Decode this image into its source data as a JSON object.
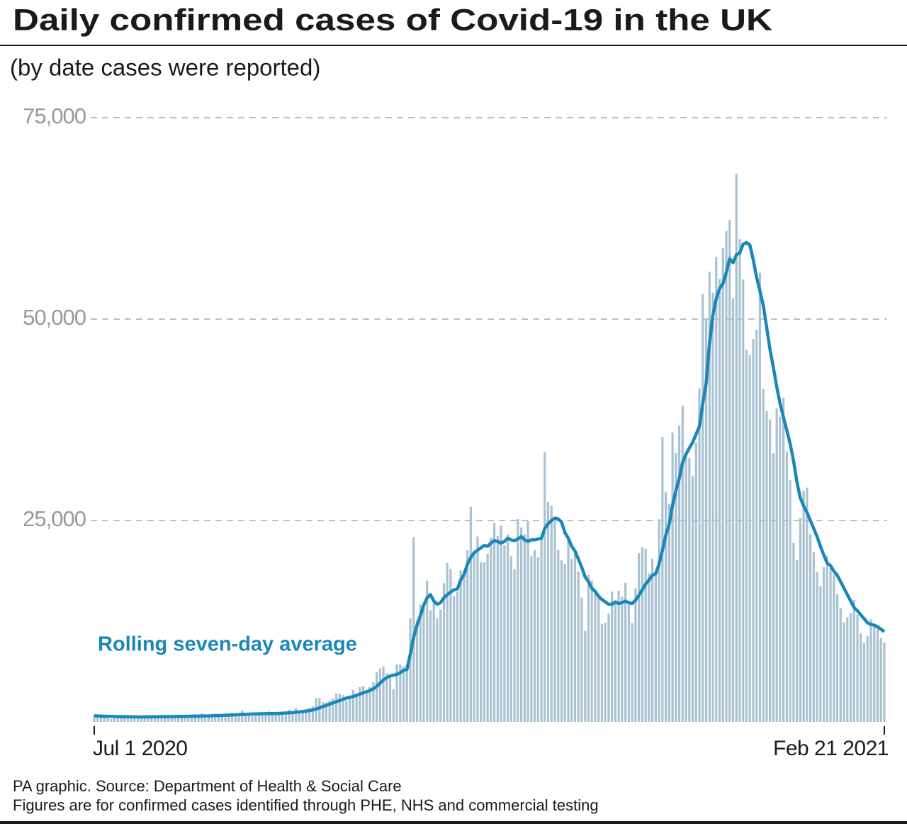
{
  "chart_data": {
    "type": "bar",
    "title": "Daily confirmed cases of Covid-19 in the UK",
    "subtitle": "(by date cases were reported)",
    "notes": [
      "PA graphic. Source: Department of Health & Social Care",
      "Figures are for confirmed cases identified through PHE, NHS and commercial testing"
    ],
    "categories": [
      "Jul 1 2020",
      null,
      null,
      null,
      null,
      null,
      null,
      null,
      null,
      null,
      null,
      null,
      null,
      null,
      null,
      null,
      null,
      null,
      null,
      null,
      null,
      null,
      null,
      null,
      null,
      null,
      null,
      null,
      null,
      null,
      null,
      null,
      null,
      null,
      null,
      null,
      null,
      null,
      null,
      null,
      null,
      null,
      null,
      null,
      null,
      null,
      null,
      null,
      null,
      null,
      null,
      null,
      null,
      null,
      null,
      null,
      null,
      null,
      null,
      null,
      null,
      null,
      null,
      null,
      null,
      null,
      null,
      null,
      null,
      null,
      null,
      null,
      null,
      null,
      null,
      null,
      null,
      null,
      null,
      null,
      null,
      null,
      null,
      null,
      null,
      null,
      null,
      null,
      null,
      null,
      null,
      null,
      null,
      null,
      null,
      null,
      null,
      null,
      null,
      null,
      null,
      null,
      null,
      null,
      null,
      null,
      null,
      null,
      null,
      null,
      null,
      null,
      null,
      null,
      null,
      null,
      null,
      null,
      null,
      null,
      null,
      null,
      null,
      null,
      null,
      null,
      null,
      null,
      null,
      null,
      null,
      null,
      null,
      null,
      null,
      null,
      null,
      null,
      null,
      null,
      null,
      null,
      null,
      null,
      null,
      null,
      null,
      null,
      null,
      null,
      null,
      null,
      null,
      null,
      null,
      null,
      null,
      null,
      null,
      null,
      null,
      null,
      null,
      null,
      null,
      null,
      null,
      null,
      null,
      null,
      null,
      null,
      null,
      null,
      null,
      null,
      null,
      null,
      null,
      null,
      null,
      null,
      null,
      null,
      null,
      null,
      null,
      null,
      null,
      null,
      null,
      null,
      null,
      null,
      null,
      null,
      null,
      null,
      null,
      null,
      null,
      null,
      null,
      null,
      null,
      null,
      null,
      null,
      null,
      null,
      null,
      null,
      null,
      null,
      null,
      null,
      null,
      null,
      null,
      null,
      null,
      null,
      null,
      null,
      null,
      null,
      null,
      null,
      null,
      null,
      null,
      null,
      null,
      null,
      null,
      "Feb 21 2021"
    ],
    "series": [
      {
        "type": "bar",
        "color": "#a9c2d2",
        "values": [
          814,
          576,
          624,
          516,
          624,
          352,
          581,
          630,
          512,
          642,
          820,
          650,
          530,
          581,
          538,
          463,
          687,
          827,
          726,
          560,
          445,
          768,
          769,
          560,
          767,
          685,
          580,
          763,
          581,
          846,
          880,
          743,
          1062,
          938,
          670,
          892,
          950,
          871,
          758,
          1062,
          1005,
          1148,
          1009,
          950,
          1441,
          1012,
          1040,
          713,
          1089,
          812,
          1182,
          1033,
          1288,
          1041,
          853,
          1041,
          1184,
          1276,
          1522,
          1108,
          1715,
          1406,
          1295,
          1508,
          1735,
          1940,
          2988,
          2948,
          2460,
          2420,
          2659,
          2919,
          3539,
          3497,
          3330,
          2621,
          3105,
          3991,
          3395,
          4322,
          4422,
          3899,
          4368,
          4926,
          6178,
          6634,
          6874,
          6042,
          5693,
          4044,
          7143,
          7108,
          6914,
          7108,
          12872,
          22961,
          12594,
          14542,
          14162,
          17540,
          13864,
          15166,
          12872,
          13972,
          17234,
          19724,
          18980,
          15650,
          16171,
          18804,
          18804,
          21331,
          26688,
          21242,
          23012,
          19790,
          19790,
          20890,
          22885,
          24701,
          23065,
          24405,
          21915,
          23254,
          20572,
          18950,
          25177,
          24141,
          23287,
          24957,
          20572,
          21350,
          20412,
          22950,
          33470,
          27301,
          26860,
          24962,
          21363,
          20051,
          19609,
          22915,
          20252,
          21363,
          18662,
          15450,
          11299,
          18213,
          17555,
          16022,
          15871,
          12155,
          12330,
          13430,
          16170,
          14879,
          16298,
          15539,
          17272,
          14718,
          12282,
          16578,
          20964,
          21672,
          21502,
          18447,
          20263,
          18450,
          25161,
          35383,
          28507,
          27052,
          35928,
          33364,
          36804,
          39237,
          32725,
          32725,
          30501,
          34693,
          41385,
          53135,
          50023,
          55892,
          53285,
          57725,
          54990,
          58784,
          60916,
          62322,
          52618,
          68053,
          59937,
          54940,
          46169,
          45533,
          47525,
          48682,
          55761,
          41346,
          38598,
          37535,
          33355,
          38905,
          37892,
          40261,
          33552,
          30004,
          22195,
          20089,
          25308,
          28680,
          29079,
          23275,
          21088,
          18607,
          16840,
          19202,
          20634,
          19114,
          18262,
          15845,
          14104,
          12364,
          13013,
          13494,
          15144,
          13308,
          10972,
          9765,
          10625,
          12718,
          12057,
          12027,
          10406,
          9834
        ]
      },
      {
        "type": "line",
        "name": "Rolling seven-day average",
        "color": "#1a87b9",
        "values": [
          760,
          740,
          720,
          700,
          690,
          680,
          670,
          660,
          650,
          640,
          640,
          630,
          630,
          620,
          620,
          620,
          630,
          630,
          640,
          640,
          650,
          650,
          660,
          660,
          670,
          670,
          680,
          680,
          690,
          700,
          710,
          720,
          730,
          740,
          750,
          760,
          780,
          790,
          800,
          820,
          840,
          860,
          880,
          900,
          920,
          940,
          960,
          980,
          990,
          1000,
          1010,
          1020,
          1030,
          1040,
          1050,
          1060,
          1080,
          1100,
          1130,
          1160,
          1200,
          1240,
          1290,
          1340,
          1400,
          1480,
          1600,
          1750,
          1900,
          2050,
          2200,
          2350,
          2500,
          2650,
          2800,
          2950,
          3050,
          3150,
          3300,
          3450,
          3600,
          3750,
          3900,
          4100,
          4400,
          4800,
          5200,
          5500,
          5700,
          5800,
          5900,
          6100,
          6400,
          6500,
          8400,
          10500,
          12000,
          13200,
          14500,
          15400,
          15800,
          15000,
          14600,
          14800,
          15400,
          15800,
          16100,
          16400,
          16500,
          17600,
          18300,
          19600,
          20400,
          21000,
          21300,
          21600,
          21900,
          21800,
          22200,
          22500,
          22400,
          22200,
          22400,
          22800,
          22600,
          22500,
          22700,
          23000,
          22600,
          22400,
          22600,
          22600,
          22700,
          22800,
          24000,
          24600,
          25000,
          25300,
          25200,
          24800,
          23500,
          22800,
          21800,
          21200,
          20200,
          19200,
          18000,
          17400,
          16600,
          16200,
          15600,
          15200,
          14900,
          14600,
          14600,
          14900,
          14700,
          14800,
          15000,
          14800,
          14700,
          15100,
          15700,
          16400,
          17100,
          17600,
          18200,
          18400,
          19600,
          21300,
          23200,
          24500,
          26900,
          28700,
          30200,
          32200,
          33200,
          34000,
          34700,
          35700,
          36700,
          39500,
          42000,
          47000,
          50500,
          52500,
          53800,
          54400,
          55800,
          57500,
          57000,
          58000,
          58200,
          59300,
          59500,
          59200,
          57400,
          55200,
          53500,
          51700,
          49000,
          46200,
          44000,
          41600,
          39500,
          37800,
          36200,
          34500,
          32400,
          29800,
          27800,
          26800,
          26000,
          25000,
          24000,
          23000,
          21800,
          20700,
          19700,
          19400,
          18700,
          18200,
          17400,
          16600,
          15800,
          15000,
          14200,
          13800,
          13300,
          12800,
          12300,
          12100,
          12000,
          11800,
          11500,
          11200
        ]
      }
    ],
    "ylim": [
      0,
      75000
    ],
    "yticks": [
      {
        "value": 25000,
        "label": "25,000"
      },
      {
        "value": 50000,
        "label": "50,000"
      },
      {
        "value": 75000,
        "label": "75,000"
      }
    ],
    "grid": true
  }
}
